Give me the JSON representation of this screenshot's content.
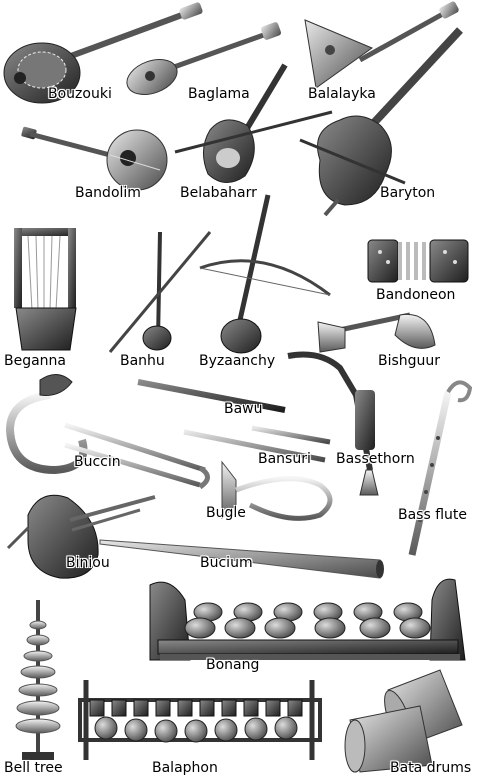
{
  "instruments": [
    {
      "id": "bouzouki",
      "label": "Bouzouki"
    },
    {
      "id": "baglama",
      "label": "Baglama"
    },
    {
      "id": "balalayka",
      "label": "Balalayka"
    },
    {
      "id": "bandolim",
      "label": "Bandolim"
    },
    {
      "id": "belabaharr",
      "label": "Belabaharr"
    },
    {
      "id": "baryton",
      "label": "Baryton"
    },
    {
      "id": "beganna",
      "label": "Beganna"
    },
    {
      "id": "banhu",
      "label": "Banhu"
    },
    {
      "id": "byzaanchy",
      "label": "Byzaanchy"
    },
    {
      "id": "bandoneon",
      "label": "Bandoneon"
    },
    {
      "id": "bishguur",
      "label": "Bishguur"
    },
    {
      "id": "bawu",
      "label": "Bawu"
    },
    {
      "id": "buccin",
      "label": "Buccin"
    },
    {
      "id": "bansuri",
      "label": "Bansuri"
    },
    {
      "id": "bassethorn",
      "label": "Bassethorn"
    },
    {
      "id": "bugle",
      "label": "Bugle"
    },
    {
      "id": "bass-flute",
      "label": "Bass flute"
    },
    {
      "id": "biniou",
      "label": "Biniou"
    },
    {
      "id": "bucium",
      "label": "Bucium"
    },
    {
      "id": "bonang",
      "label": "Bonang"
    },
    {
      "id": "bell-tree",
      "label": "Bell tree"
    },
    {
      "id": "balaphon",
      "label": "Balaphon"
    },
    {
      "id": "bata-drums",
      "label": "Bata drums"
    }
  ]
}
